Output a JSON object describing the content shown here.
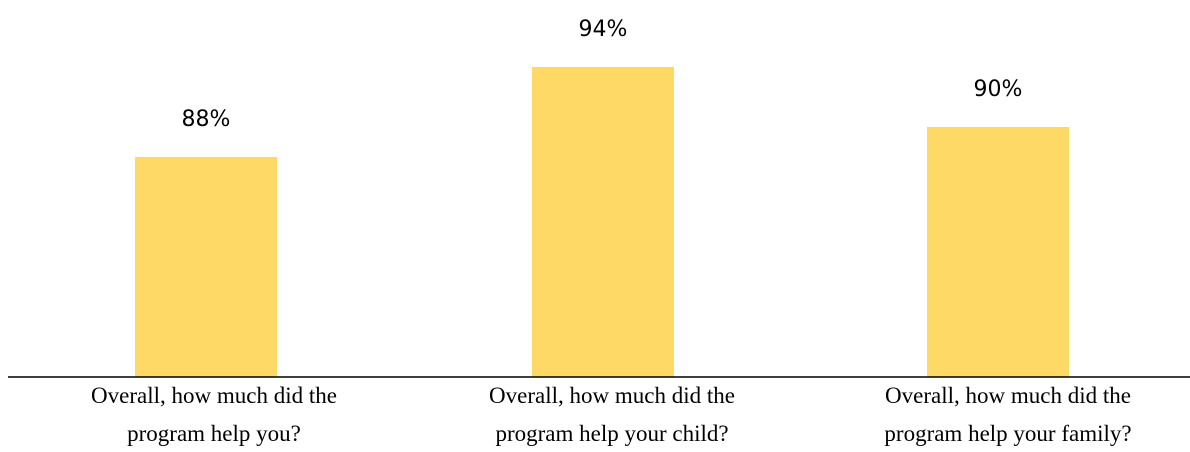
{
  "chart_data": {
    "type": "bar",
    "categories": [
      [
        "Overall, how much did the",
        "program help you?"
      ],
      [
        "Overall, how much did the",
        "program help your child?"
      ],
      [
        "Overall, how much did the",
        "program help your family?"
      ]
    ],
    "values": [
      88,
      94,
      90
    ],
    "data_labels": [
      "88%",
      "94%",
      "90%"
    ],
    "bar_color": "#FFD966",
    "axis_color": "#000000",
    "title": "",
    "xlabel": "",
    "ylabel": "",
    "grid": false
  }
}
